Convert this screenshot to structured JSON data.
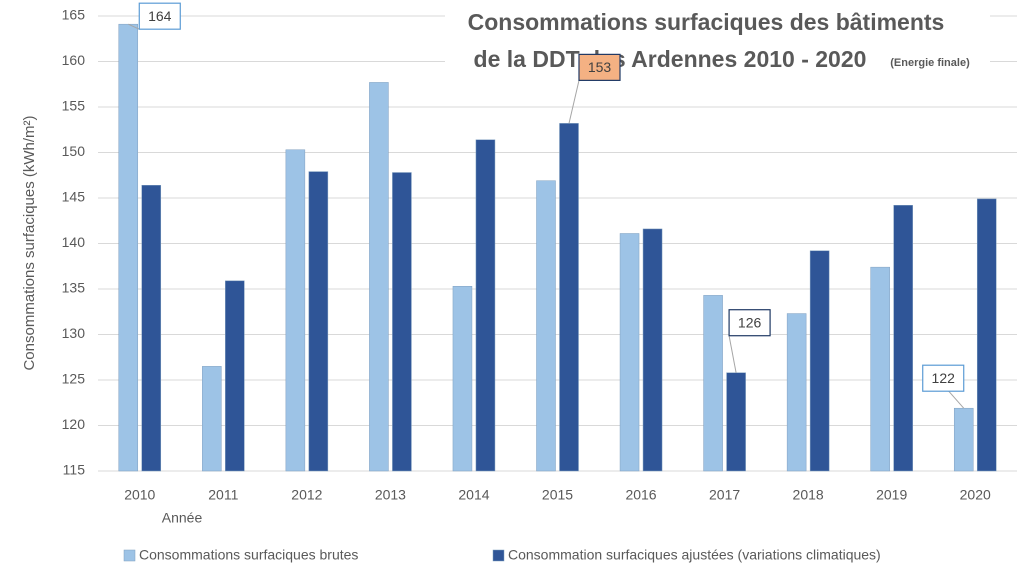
{
  "chart_data": {
    "type": "bar",
    "title": "Consommations surfaciques des bâtiments",
    "title_line2": "de la DDT des Ardennes 2010 - 2020",
    "subtitle": "(Energie finale)",
    "y_label": "Consommations surfaciques (kWh/m²)",
    "x_label": "Année",
    "categories": [
      "2010",
      "2011",
      "2012",
      "2013",
      "2014",
      "2015",
      "2016",
      "2017",
      "2018",
      "2019",
      "2020"
    ],
    "series": [
      {
        "name": "Consommations surfaciques brutes",
        "color": "#9dc3e6",
        "values": [
          164.1,
          126.5,
          150.3,
          157.7,
          135.3,
          146.9,
          141.1,
          134.3,
          132.3,
          137.4,
          121.9
        ],
        "value_labels": [
          "164",
          null,
          null,
          null,
          null,
          null,
          null,
          null,
          null,
          null,
          "122"
        ]
      },
      {
        "name": "Consommation surfaciques ajustées (variations climatiques)",
        "color": "#2f5597",
        "values": [
          146.4,
          135.9,
          147.9,
          147.8,
          151.4,
          153.2,
          141.6,
          125.8,
          139.2,
          144.2,
          144.9
        ],
        "value_labels": [
          null,
          null,
          null,
          null,
          null,
          "153",
          null,
          "126",
          null,
          null,
          null
        ]
      }
    ],
    "ylim": [
      115,
      165
    ],
    "yticks": [
      115,
      120,
      125,
      130,
      135,
      140,
      145,
      150,
      155,
      160,
      165
    ],
    "grid": true
  }
}
